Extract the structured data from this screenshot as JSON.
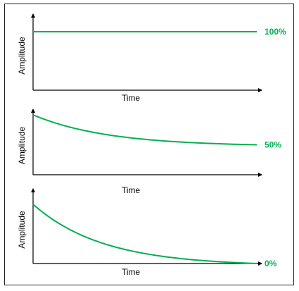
{
  "chart_data": [
    {
      "type": "line",
      "xlabel": "Time",
      "ylabel": "Amplitude",
      "end_label": "100%",
      "end_value_percent": 100,
      "shape": "constant",
      "color": "#00B050",
      "grid": false,
      "legend": "none"
    },
    {
      "type": "line",
      "xlabel": "Time",
      "ylabel": "Amplitude",
      "end_label": "50%",
      "end_value_percent": 50,
      "shape": "decay",
      "color": "#00B050",
      "grid": false,
      "legend": "none"
    },
    {
      "type": "line",
      "xlabel": "Time",
      "ylabel": "Amplitude",
      "end_label": "0%",
      "end_value_percent": 0,
      "shape": "decay",
      "color": "#00B050",
      "grid": false,
      "legend": "none"
    }
  ]
}
